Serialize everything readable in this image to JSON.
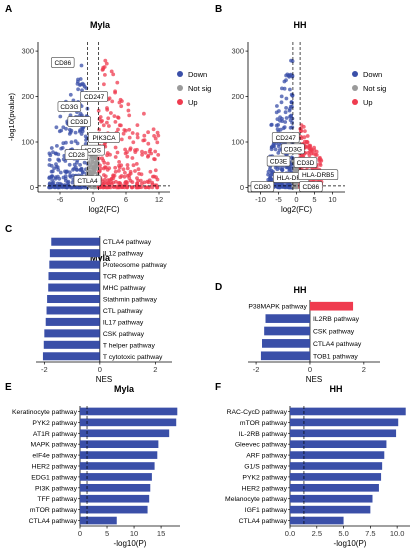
{
  "figure": {
    "panels": [
      {
        "letter": "A",
        "title": "Myla"
      },
      {
        "letter": "B",
        "title": "HH"
      },
      {
        "letter": "C",
        "title": "Myla"
      },
      {
        "letter": "D",
        "title": "HH"
      },
      {
        "letter": "E",
        "title": "Myla"
      },
      {
        "letter": "F",
        "title": "HH"
      }
    ]
  },
  "chart_data": [
    {
      "panel": "A",
      "type": "scatter",
      "title": "Myla",
      "xlabel": "log2(FC)",
      "ylabel": "-log10(pvalue)",
      "xlim": [
        -10,
        14
      ],
      "ylim": [
        -10,
        320
      ],
      "xticks": [
        -6,
        0,
        6,
        12
      ],
      "yticks": [
        0,
        100,
        200,
        300
      ],
      "xtick_labels": [
        "-6",
        "0",
        "6",
        "12"
      ],
      "ytick_labels": [
        "0",
        "100",
        "200",
        "300"
      ],
      "thresholds": {
        "x": [
          -1,
          1
        ],
        "y": 1.3
      },
      "legend": {
        "placement": "right",
        "entries": [
          {
            "label": "Down",
            "color": "#3a4fa8"
          },
          {
            "label": "Not sig",
            "color": "#9a9a9a"
          },
          {
            "label": "Up",
            "color": "#ef3b4f"
          }
        ]
      },
      "gene_labels": [
        {
          "label": "CD86",
          "x": -5.5,
          "y": 275
        },
        {
          "label": "CD247",
          "x": 0.2,
          "y": 200
        },
        {
          "label": "CD3G",
          "x": -4.3,
          "y": 178
        },
        {
          "label": "CD3D",
          "x": -2.5,
          "y": 145
        },
        {
          "label": "PIK3CA",
          "x": 2,
          "y": 110
        },
        {
          "label": "ICOS",
          "x": 0,
          "y": 82
        },
        {
          "label": "CD28",
          "x": -3,
          "y": 72
        },
        {
          "label": "CTLA4",
          "x": -1,
          "y": 15
        }
      ],
      "clouds": [
        {
          "group": "Down",
          "x_min": -8,
          "x_max": -1,
          "y_max": 300
        },
        {
          "group": "Not sig",
          "x_min": -1,
          "x_max": 1,
          "y_max": 70
        },
        {
          "group": "Up",
          "x_min": 1,
          "x_max": 12,
          "y_max": 300
        }
      ]
    },
    {
      "panel": "B",
      "type": "scatter",
      "title": "HH",
      "xlabel": "log2(FC)",
      "ylabel": "",
      "xlim": [
        -13.5,
        13.5
      ],
      "ylim": [
        -10,
        320
      ],
      "xticks": [
        -10,
        -5,
        0,
        5,
        10
      ],
      "yticks": [
        0,
        100,
        200,
        300
      ],
      "xtick_labels": [
        "-10",
        "-5",
        "0",
        "5",
        "10"
      ],
      "ytick_labels": [
        "0",
        "100",
        "200",
        "300"
      ],
      "thresholds": {
        "x": [
          -1,
          1
        ],
        "y": 1.3
      },
      "legend": {
        "placement": "right",
        "entries": [
          {
            "label": "Down",
            "color": "#3a4fa8"
          },
          {
            "label": "Not sig",
            "color": "#9a9a9a"
          },
          {
            "label": "Up",
            "color": "#ef3b4f"
          }
        ]
      },
      "gene_labels": [
        {
          "label": "CD247",
          "x": -3,
          "y": 110
        },
        {
          "label": "CD3G",
          "x": -1,
          "y": 85
        },
        {
          "label": "CD3E",
          "x": -5,
          "y": 58
        },
        {
          "label": "CD3D",
          "x": 2.5,
          "y": 55
        },
        {
          "label": "HLA-DRA",
          "x": -1.5,
          "y": 22
        },
        {
          "label": "HLA-DRB5",
          "x": 6,
          "y": 28
        },
        {
          "label": "CD80",
          "x": -9.5,
          "y": 2
        },
        {
          "label": "CD86",
          "x": 4,
          "y": 2
        }
      ],
      "clouds": [
        {
          "group": "Down",
          "x_min": -8,
          "x_max": -1,
          "y_max": 300
        },
        {
          "group": "Not sig",
          "x_min": -1,
          "x_max": 1,
          "y_max": 60
        },
        {
          "group": "Up",
          "x_min": 1,
          "x_max": 7,
          "y_max": 150
        }
      ]
    },
    {
      "panel": "C",
      "type": "bar",
      "orientation": "horizontal",
      "title": "Myla",
      "xlabel": "NES",
      "xlim": [
        -2.3,
        2.6
      ],
      "xticks": [
        -2,
        0,
        2
      ],
      "xtick_labels": [
        "-2",
        "0",
        "2"
      ],
      "categories": [
        "CTLA4 pathway",
        "IL12 pathway",
        "Proteosome pathway",
        "TCR pathway",
        "MHC pathway",
        "Stathmin pathway",
        "CTL pathway",
        "IL17 pathway",
        "CSK pathway",
        "T helper pathway",
        "T cytotoxic pathway"
      ],
      "values": [
        -1.75,
        -1.8,
        -1.82,
        -1.85,
        -1.86,
        -1.9,
        -1.92,
        -1.95,
        -2.0,
        -2.02,
        -2.05
      ],
      "colors": {
        "negative": "#3a4fa8",
        "positive": "#ef3b4f"
      }
    },
    {
      "panel": "D",
      "type": "bar",
      "orientation": "horizontal",
      "title": "HH",
      "xlabel": "NES",
      "xlim": [
        -2.3,
        2.6
      ],
      "xticks": [
        -2,
        0,
        2
      ],
      "xtick_labels": [
        "-2",
        "0",
        "2"
      ],
      "categories": [
        "P38MAPK pathway",
        "IL2RB pathway",
        "CSK pathway",
        "CTLA4 pathway",
        "TOB1 pathway"
      ],
      "values": [
        1.6,
        -1.65,
        -1.7,
        -1.78,
        -1.82
      ],
      "colors": {
        "negative": "#3a4fa8",
        "positive": "#ef3b4f"
      }
    },
    {
      "panel": "E",
      "type": "bar",
      "orientation": "horizontal",
      "title": "Myla",
      "xlabel": "-log10(P)",
      "xlim": [
        0,
        18.5
      ],
      "xticks": [
        0,
        5,
        10,
        15
      ],
      "xtick_labels": [
        "0",
        "5",
        "10",
        "15"
      ],
      "threshold": 1.3,
      "categories": [
        "Keratinocyte pathway",
        "PYK2 pathway",
        "AT1R pathway",
        "MAPK pathway",
        "eIF4e pathway",
        "HER2 pathway",
        "EDG1 pathway",
        "PI3K pathway",
        "TFF pathway",
        "mTOR pathway",
        "CTLA4 pathway"
      ],
      "values": [
        18,
        17.8,
        16.5,
        14.5,
        14.3,
        13.8,
        13.3,
        13,
        12.8,
        12.5,
        6.8
      ],
      "colors": {
        "bar": "#3a4fa8"
      }
    },
    {
      "panel": "F",
      "type": "bar",
      "orientation": "horizontal",
      "title": "HH",
      "xlabel": "-log10(P)",
      "xlim": [
        0,
        11.2
      ],
      "xticks": [
        0,
        2.5,
        5,
        7.5,
        10
      ],
      "xtick_labels": [
        "0.0",
        "2.5",
        "5.0",
        "7.5",
        "10.0"
      ],
      "threshold": 1.3,
      "categories": [
        "RAC-CycD pathway",
        "mTOR pathway",
        "IL-2RB pathway",
        "Gleevec pathway",
        "ARF pathway",
        "G1/S pathway",
        "PYK2 pathway",
        "HER2 pathway",
        "Melanocyte pathway",
        "IGF1 pathway",
        "CTLA4 pathway"
      ],
      "values": [
        10.8,
        10.1,
        9.9,
        9.0,
        8.8,
        8.6,
        8.5,
        8.3,
        7.7,
        7.5,
        5.0
      ],
      "colors": {
        "bar": "#3a4fa8"
      }
    }
  ]
}
